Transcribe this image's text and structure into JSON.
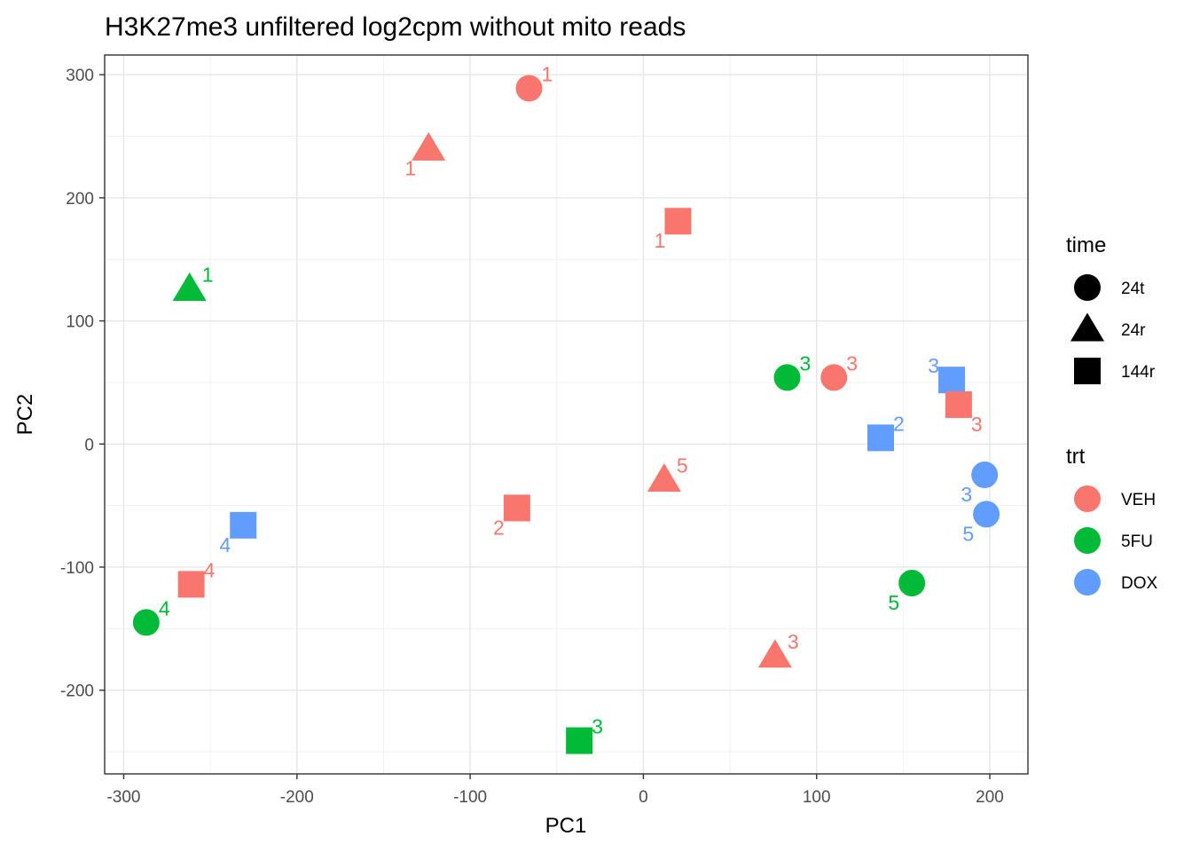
{
  "chart_data": {
    "type": "scatter",
    "title": "H3K27me3 unfiltered log2cpm without mito reads",
    "xlabel": "PC1",
    "ylabel": "PC2",
    "xlim": [
      -311,
      222
    ],
    "ylim": [
      -268,
      316
    ],
    "xticks": [
      -300,
      -200,
      -100,
      0,
      100,
      200
    ],
    "yticks": [
      -200,
      -100,
      0,
      100,
      200,
      300
    ],
    "grid": true,
    "legend_position": "right",
    "legends": [
      {
        "title": "time",
        "kind": "shape",
        "entries": [
          {
            "label": "24t",
            "shape": "circle"
          },
          {
            "label": "24r",
            "shape": "triangle"
          },
          {
            "label": "144r",
            "shape": "square"
          }
        ]
      },
      {
        "title": "trt",
        "kind": "color",
        "entries": [
          {
            "label": "VEH",
            "color": "#F8766D"
          },
          {
            "label": "5FU",
            "color": "#00BA38"
          },
          {
            "label": "DOX",
            "color": "#619CFF"
          }
        ]
      }
    ],
    "points": [
      {
        "x": -66,
        "y": 289,
        "trt": "VEH",
        "time": "24t",
        "label": "1",
        "anchor": "ne"
      },
      {
        "x": -124,
        "y": 240,
        "trt": "VEH",
        "time": "24r",
        "label": "1",
        "anchor": "sw"
      },
      {
        "x": 20,
        "y": 181,
        "trt": "VEH",
        "time": "144r",
        "label": "1",
        "anchor": "sw"
      },
      {
        "x": -262,
        "y": 126,
        "trt": "5FU",
        "time": "24r",
        "label": "1",
        "anchor": "ne"
      },
      {
        "x": 83,
        "y": 54,
        "trt": "5FU",
        "time": "24t",
        "label": "3",
        "anchor": "ne"
      },
      {
        "x": 110,
        "y": 54,
        "trt": "VEH",
        "time": "24t",
        "label": "3",
        "anchor": "ne"
      },
      {
        "x": 178,
        "y": 52,
        "trt": "DOX",
        "time": "144r",
        "label": "3",
        "anchor": "nw"
      },
      {
        "x": 182,
        "y": 32,
        "trt": "VEH",
        "time": "144r",
        "label": "3",
        "anchor": "se"
      },
      {
        "x": 137,
        "y": 5,
        "trt": "DOX",
        "time": "144r",
        "label": "2",
        "anchor": "ne"
      },
      {
        "x": 197,
        "y": -25,
        "trt": "DOX",
        "time": "24t",
        "label": "3",
        "anchor": "sw"
      },
      {
        "x": 198,
        "y": -57,
        "trt": "DOX",
        "time": "24t",
        "label": "5",
        "anchor": "sw"
      },
      {
        "x": 12,
        "y": -29,
        "trt": "VEH",
        "time": "24r",
        "label": "5",
        "anchor": "ne"
      },
      {
        "x": -73,
        "y": -52,
        "trt": "VEH",
        "time": "144r",
        "label": "2",
        "anchor": "sw"
      },
      {
        "x": -231,
        "y": -66,
        "trt": "DOX",
        "time": "144r",
        "label": "4",
        "anchor": "sw"
      },
      {
        "x": -261,
        "y": -114,
        "trt": "VEH",
        "time": "144r",
        "label": "4",
        "anchor": "ne"
      },
      {
        "x": -287,
        "y": -145,
        "trt": "5FU",
        "time": "24t",
        "label": "4",
        "anchor": "ne"
      },
      {
        "x": 155,
        "y": -113,
        "trt": "5FU",
        "time": "24t",
        "label": "5",
        "anchor": "sw"
      },
      {
        "x": 76,
        "y": -172,
        "trt": "VEH",
        "time": "24r",
        "label": "3",
        "anchor": "ne"
      },
      {
        "x": -37,
        "y": -241,
        "trt": "5FU",
        "time": "144r",
        "label": "3",
        "anchor": "ne"
      }
    ]
  }
}
